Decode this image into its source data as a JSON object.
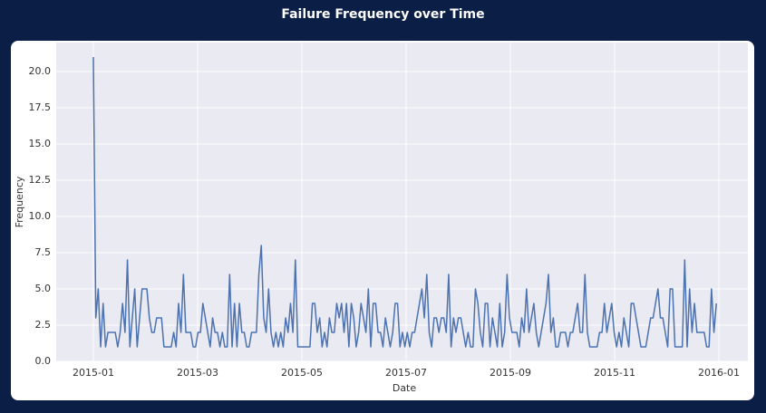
{
  "chart_data": {
    "type": "line",
    "title": "Failure Frequency over Time",
    "xlabel": "Date",
    "ylabel": "Frequency",
    "xticks": [
      "2015-01",
      "2015-03",
      "2015-05",
      "2015-07",
      "2015-09",
      "2015-11",
      "2016-01"
    ],
    "ylim": [
      0,
      22
    ],
    "yticks": [
      {
        "value": 0,
        "label": "0.0"
      },
      2.5,
      {
        "value": 5,
        "label": "5.0"
      },
      7.5,
      {
        "value": 10,
        "label": "10.0"
      },
      12.5,
      {
        "value": 15,
        "label": "15.0"
      },
      17.5,
      {
        "value": 20,
        "label": "20.0"
      }
    ],
    "grid": true,
    "color": "#4c72b0",
    "values": [
      21,
      3,
      5,
      1,
      4,
      1,
      2,
      2,
      2,
      2,
      1,
      2,
      4,
      2,
      7,
      1,
      3,
      5,
      1,
      3,
      5,
      5,
      5,
      3,
      2,
      2,
      3,
      3,
      3,
      1,
      1,
      1,
      1,
      2,
      1,
      4,
      2,
      6,
      2,
      2,
      2,
      1,
      1,
      2,
      2,
      4,
      3,
      2,
      1,
      3,
      2,
      2,
      1,
      2,
      1,
      1,
      6,
      1,
      4,
      1,
      4,
      2,
      2,
      1,
      1,
      2,
      2,
      2,
      6,
      8,
      3,
      2,
      5,
      2,
      1,
      2,
      1,
      2,
      1,
      3,
      2,
      4,
      2,
      7,
      1,
      1,
      1,
      1,
      1,
      1,
      4,
      4,
      2,
      3,
      1,
      2,
      1,
      3,
      2,
      2,
      4,
      3,
      4,
      2,
      4,
      1,
      4,
      3,
      1,
      2,
      4,
      3,
      2,
      5,
      1,
      4,
      4,
      2,
      2,
      1,
      3,
      2,
      1,
      2,
      4,
      4,
      1,
      2,
      1,
      2,
      1,
      2,
      2,
      3,
      4,
      5,
      3,
      6,
      2,
      1,
      3,
      3,
      2,
      3,
      3,
      2,
      6,
      1,
      3,
      2,
      3,
      3,
      2,
      1,
      2,
      1,
      1,
      5,
      4,
      2,
      1,
      4,
      4,
      1,
      3,
      2,
      1,
      4,
      1,
      2,
      6,
      3,
      2,
      2,
      2,
      1,
      3,
      2,
      5,
      2,
      3,
      4,
      2,
      1,
      2,
      3,
      4,
      6,
      2,
      3,
      1,
      1,
      2,
      2,
      2,
      1,
      2,
      2,
      3,
      4,
      2,
      2,
      6,
      2,
      1,
      1,
      1,
      1,
      2,
      2,
      4,
      2,
      3,
      4,
      2,
      1,
      2,
      1,
      3,
      2,
      1,
      4,
      4,
      3,
      2,
      1,
      1,
      1,
      2,
      3,
      3,
      4,
      5,
      3,
      3,
      2,
      1,
      5,
      5,
      1,
      1,
      1,
      1,
      7,
      1,
      5,
      2,
      4,
      2,
      2,
      2,
      2,
      1,
      1,
      5,
      2,
      4
    ]
  }
}
